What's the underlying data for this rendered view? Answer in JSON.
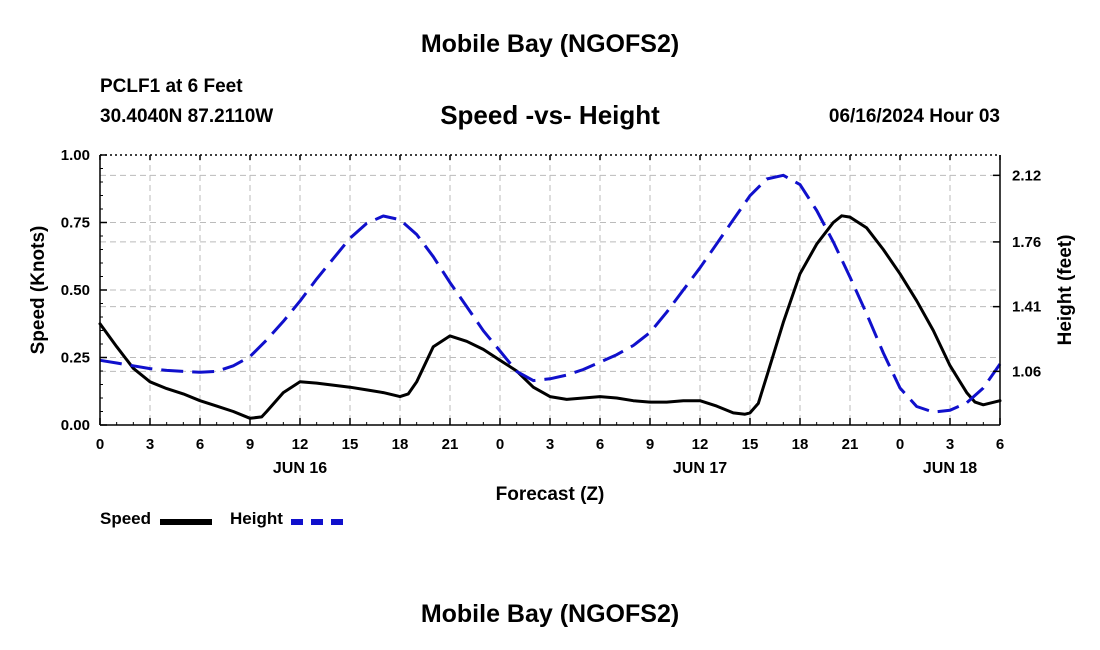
{
  "page": {
    "top_title": "Mobile Bay (NGOFS2)",
    "bottom_title": "Mobile Bay (NGOFS2)",
    "station_line": "PCLF1 at 6 Feet",
    "coords_line": "30.4040N  87.2110W",
    "timestamp": "06/16/2024 Hour 03"
  },
  "legend": {
    "speed_label": "Speed",
    "height_label": "Height"
  },
  "chart_data": {
    "type": "line",
    "title": "Speed -vs- Height",
    "xlabel": "Forecast (Z)",
    "ylabel": "Speed (Knots)",
    "y2label": "Height (feet)",
    "x_unit": "hours from 06/16/2024 00Z",
    "xlim": [
      0,
      54
    ],
    "ylim": [
      0,
      1.0
    ],
    "y2lim": [
      0.77,
      2.23
    ],
    "x_ticks": [
      0,
      3,
      6,
      9,
      12,
      15,
      18,
      21,
      24,
      27,
      30,
      33,
      36,
      39,
      42,
      45,
      48,
      51,
      54
    ],
    "x_tick_labels": [
      "0",
      "3",
      "6",
      "9",
      "12",
      "15",
      "18",
      "21",
      "0",
      "3",
      "6",
      "9",
      "12",
      "15",
      "18",
      "21",
      "0",
      "3",
      "6"
    ],
    "y_ticks": [
      0,
      0.25,
      0.5,
      0.75,
      1.0
    ],
    "y_tick_labels": [
      "0.00",
      "0.25",
      "0.50",
      "0.75",
      "1.00"
    ],
    "y2_ticks": [
      1.06,
      1.41,
      1.76,
      2.12
    ],
    "y2_tick_labels": [
      "1.06",
      "1.41",
      "1.76",
      "2.12"
    ],
    "day_labels": [
      {
        "x": 12,
        "label": "JUN 16"
      },
      {
        "x": 36,
        "label": "JUN 17"
      },
      {
        "x": 51,
        "label": "JUN 18"
      }
    ],
    "grid": true,
    "colors": {
      "speed": "#000000",
      "height": "#1010cc"
    },
    "series": [
      {
        "name": "Speed",
        "axis": "left",
        "style": "solid",
        "points": [
          [
            0,
            0.375
          ],
          [
            1,
            0.29
          ],
          [
            2,
            0.21
          ],
          [
            3,
            0.16
          ],
          [
            4,
            0.135
          ],
          [
            5,
            0.115
          ],
          [
            6,
            0.09
          ],
          [
            7,
            0.07
          ],
          [
            8,
            0.05
          ],
          [
            9,
            0.025
          ],
          [
            9.7,
            0.03
          ],
          [
            10,
            0.05
          ],
          [
            11,
            0.12
          ],
          [
            12,
            0.16
          ],
          [
            13,
            0.155
          ],
          [
            15,
            0.14
          ],
          [
            16,
            0.13
          ],
          [
            17,
            0.12
          ],
          [
            18,
            0.105
          ],
          [
            18.5,
            0.115
          ],
          [
            19,
            0.16
          ],
          [
            20,
            0.29
          ],
          [
            21,
            0.33
          ],
          [
            22,
            0.31
          ],
          [
            23,
            0.28
          ],
          [
            24,
            0.24
          ],
          [
            25,
            0.2
          ],
          [
            26,
            0.14
          ],
          [
            27,
            0.105
          ],
          [
            28,
            0.095
          ],
          [
            29,
            0.1
          ],
          [
            30,
            0.105
          ],
          [
            31,
            0.1
          ],
          [
            32,
            0.09
          ],
          [
            33,
            0.085
          ],
          [
            34,
            0.085
          ],
          [
            35,
            0.09
          ],
          [
            36,
            0.09
          ],
          [
            37,
            0.07
          ],
          [
            38,
            0.045
          ],
          [
            38.7,
            0.04
          ],
          [
            39,
            0.045
          ],
          [
            39.5,
            0.08
          ],
          [
            40,
            0.18
          ],
          [
            41,
            0.38
          ],
          [
            42,
            0.56
          ],
          [
            43,
            0.67
          ],
          [
            44,
            0.75
          ],
          [
            44.5,
            0.775
          ],
          [
            45,
            0.77
          ],
          [
            46,
            0.73
          ],
          [
            47,
            0.65
          ],
          [
            48,
            0.56
          ],
          [
            49,
            0.46
          ],
          [
            50,
            0.35
          ],
          [
            51,
            0.22
          ],
          [
            52,
            0.12
          ],
          [
            52.5,
            0.085
          ],
          [
            53,
            0.075
          ],
          [
            54,
            0.09
          ]
        ]
      },
      {
        "name": "Height",
        "axis": "right",
        "style": "dashed",
        "points": [
          [
            0,
            1.12
          ],
          [
            1,
            1.105
          ],
          [
            2,
            1.09
          ],
          [
            3,
            1.075
          ],
          [
            4,
            1.065
          ],
          [
            5,
            1.06
          ],
          [
            6,
            1.055
          ],
          [
            7,
            1.06
          ],
          [
            8,
            1.09
          ],
          [
            9,
            1.14
          ],
          [
            10,
            1.23
          ],
          [
            11,
            1.33
          ],
          [
            12,
            1.44
          ],
          [
            13,
            1.56
          ],
          [
            14,
            1.67
          ],
          [
            15,
            1.78
          ],
          [
            16,
            1.86
          ],
          [
            17,
            1.9
          ],
          [
            18,
            1.88
          ],
          [
            19,
            1.8
          ],
          [
            20,
            1.68
          ],
          [
            21,
            1.54
          ],
          [
            22,
            1.41
          ],
          [
            23,
            1.28
          ],
          [
            24,
            1.17
          ],
          [
            25,
            1.06
          ],
          [
            26,
            1.01
          ],
          [
            27,
            1.02
          ],
          [
            28,
            1.04
          ],
          [
            29,
            1.07
          ],
          [
            30,
            1.11
          ],
          [
            31,
            1.15
          ],
          [
            32,
            1.2
          ],
          [
            33,
            1.27
          ],
          [
            34,
            1.38
          ],
          [
            35,
            1.5
          ],
          [
            36,
            1.62
          ],
          [
            37,
            1.75
          ],
          [
            38,
            1.88
          ],
          [
            39,
            2.01
          ],
          [
            40,
            2.1
          ],
          [
            41,
            2.12
          ],
          [
            42,
            2.07
          ],
          [
            43,
            1.93
          ],
          [
            44,
            1.76
          ],
          [
            45,
            1.57
          ],
          [
            46,
            1.37
          ],
          [
            47,
            1.16
          ],
          [
            48,
            0.97
          ],
          [
            49,
            0.87
          ],
          [
            50,
            0.84
          ],
          [
            51,
            0.85
          ],
          [
            52,
            0.89
          ],
          [
            53,
            0.97
          ],
          [
            54,
            1.1
          ]
        ]
      }
    ]
  }
}
